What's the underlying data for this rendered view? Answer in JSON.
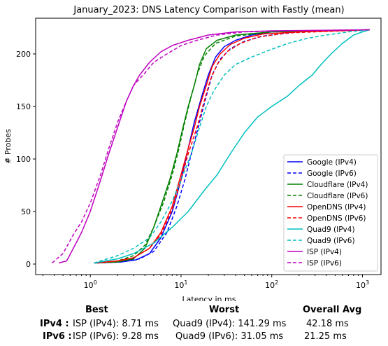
{
  "chart_data": {
    "type": "line",
    "title": "January_2023: DNS Latency Comparison with Fastly (mean)",
    "xlabel": "Latency in ms",
    "ylabel": "# Probes",
    "xscale": "log",
    "xlim": [
      0.25,
      1600
    ],
    "ylim": [
      -10,
      234
    ],
    "xticks": [
      {
        "value": 1,
        "label": "10^0"
      },
      {
        "value": 10,
        "label": "10^1"
      },
      {
        "value": 100,
        "label": "10^2"
      },
      {
        "value": 1000,
        "label": "10^3"
      }
    ],
    "yticks": [
      0,
      50,
      100,
      150,
      200
    ],
    "grid": false,
    "legend": "bottom-right",
    "series": [
      {
        "name": "Google (IPv4)",
        "color": "#0000ff",
        "dash": false,
        "points": [
          [
            1.1,
            1
          ],
          [
            2.2,
            2
          ],
          [
            3.2,
            4
          ],
          [
            4.5,
            10
          ],
          [
            6,
            25
          ],
          [
            8,
            50
          ],
          [
            10,
            80
          ],
          [
            12,
            110
          ],
          [
            14,
            135
          ],
          [
            17,
            160
          ],
          [
            20,
            180
          ],
          [
            24,
            197
          ],
          [
            30,
            207
          ],
          [
            40,
            213
          ],
          [
            60,
            218
          ],
          [
            100,
            221
          ],
          [
            300,
            222
          ],
          [
            1200,
            223
          ]
        ]
      },
      {
        "name": "Google (IPv6)",
        "color": "#0000ff",
        "dash": true,
        "points": [
          [
            1.2,
            1
          ],
          [
            2.2,
            2
          ],
          [
            3.5,
            5
          ],
          [
            5,
            12
          ],
          [
            7,
            30
          ],
          [
            9,
            55
          ],
          [
            11,
            80
          ],
          [
            13,
            105
          ],
          [
            16,
            135
          ],
          [
            19,
            160
          ],
          [
            22,
            180
          ],
          [
            27,
            195
          ],
          [
            35,
            205
          ],
          [
            50,
            212
          ],
          [
            80,
            217
          ],
          [
            200,
            221
          ],
          [
            1200,
            223
          ]
        ]
      },
      {
        "name": "Cloudflare (IPv4)",
        "color": "#008000",
        "dash": false,
        "points": [
          [
            1.1,
            1
          ],
          [
            2,
            2
          ],
          [
            3,
            5
          ],
          [
            4,
            15
          ],
          [
            5,
            35
          ],
          [
            6,
            55
          ],
          [
            7.5,
            80
          ],
          [
            9,
            105
          ],
          [
            10.5,
            130
          ],
          [
            12,
            150
          ],
          [
            14,
            170
          ],
          [
            16,
            190
          ],
          [
            19,
            205
          ],
          [
            25,
            213
          ],
          [
            40,
            218
          ],
          [
            100,
            221
          ],
          [
            300,
            222
          ],
          [
            1200,
            223
          ]
        ]
      },
      {
        "name": "Cloudflare (IPv6)",
        "color": "#008000",
        "dash": true,
        "points": [
          [
            1.2,
            1
          ],
          [
            2,
            3
          ],
          [
            3,
            8
          ],
          [
            4,
            18
          ],
          [
            5,
            35
          ],
          [
            6.5,
            60
          ],
          [
            8,
            85
          ],
          [
            9.5,
            110
          ],
          [
            11,
            135
          ],
          [
            13,
            160
          ],
          [
            15,
            180
          ],
          [
            18,
            198
          ],
          [
            24,
            210
          ],
          [
            40,
            217
          ],
          [
            100,
            221
          ],
          [
            1200,
            223
          ]
        ]
      },
      {
        "name": "OpenDNS (IPv4)",
        "color": "#ff0000",
        "dash": false,
        "points": [
          [
            1.1,
            1
          ],
          [
            2,
            3
          ],
          [
            3,
            6
          ],
          [
            4.5,
            15
          ],
          [
            6,
            30
          ],
          [
            8,
            55
          ],
          [
            10,
            85
          ],
          [
            12,
            110
          ],
          [
            14,
            130
          ],
          [
            16,
            150
          ],
          [
            19,
            170
          ],
          [
            22,
            188
          ],
          [
            27,
            200
          ],
          [
            35,
            209
          ],
          [
            50,
            215
          ],
          [
            80,
            219
          ],
          [
            200,
            221
          ],
          [
            1200,
            223
          ]
        ]
      },
      {
        "name": "OpenDNS (IPv6)",
        "color": "#ff0000",
        "dash": true,
        "points": [
          [
            1.2,
            1
          ],
          [
            2,
            3
          ],
          [
            3,
            6
          ],
          [
            4.5,
            15
          ],
          [
            6,
            28
          ],
          [
            8,
            52
          ],
          [
            10,
            80
          ],
          [
            12,
            105
          ],
          [
            15,
            130
          ],
          [
            18,
            155
          ],
          [
            21,
            175
          ],
          [
            25,
            190
          ],
          [
            32,
            202
          ],
          [
            45,
            210
          ],
          [
            70,
            216
          ],
          [
            150,
            220
          ],
          [
            1200,
            223
          ]
        ]
      },
      {
        "name": "Quad9 (IPv4)",
        "color": "#00bfbf",
        "dash": false,
        "points": [
          [
            1.1,
            1
          ],
          [
            2,
            5
          ],
          [
            3,
            10
          ],
          [
            5,
            20
          ],
          [
            8,
            35
          ],
          [
            12,
            50
          ],
          [
            18,
            70
          ],
          [
            25,
            85
          ],
          [
            35,
            105
          ],
          [
            50,
            125
          ],
          [
            70,
            140
          ],
          [
            100,
            150
          ],
          [
            150,
            160
          ],
          [
            200,
            170
          ],
          [
            280,
            180
          ],
          [
            350,
            190
          ],
          [
            450,
            200
          ],
          [
            600,
            210
          ],
          [
            800,
            218
          ],
          [
            1000,
            221
          ],
          [
            1200,
            223
          ]
        ]
      },
      {
        "name": "Quad9 (IPv6)",
        "color": "#00bfbf",
        "dash": true,
        "points": [
          [
            1.1,
            1
          ],
          [
            2,
            8
          ],
          [
            3,
            15
          ],
          [
            4.5,
            25
          ],
          [
            6,
            40
          ],
          [
            8,
            60
          ],
          [
            10,
            80
          ],
          [
            13,
            105
          ],
          [
            16,
            130
          ],
          [
            19,
            150
          ],
          [
            23,
            165
          ],
          [
            30,
            180
          ],
          [
            40,
            190
          ],
          [
            60,
            197
          ],
          [
            90,
            203
          ],
          [
            150,
            210
          ],
          [
            250,
            215
          ],
          [
            400,
            218
          ],
          [
            700,
            221
          ],
          [
            1200,
            223
          ]
        ]
      },
      {
        "name": "ISP (IPv4)",
        "color": "#bf00bf",
        "dash": false,
        "points": [
          [
            0.45,
            1
          ],
          [
            0.55,
            3
          ],
          [
            0.65,
            15
          ],
          [
            0.8,
            30
          ],
          [
            1,
            50
          ],
          [
            1.3,
            80
          ],
          [
            1.6,
            105
          ],
          [
            2,
            130
          ],
          [
            2.5,
            155
          ],
          [
            3,
            170
          ],
          [
            3.5,
            180
          ],
          [
            4.5,
            192
          ],
          [
            6,
            202
          ],
          [
            8,
            208
          ],
          [
            12,
            213
          ],
          [
            20,
            218
          ],
          [
            40,
            221
          ],
          [
            100,
            222
          ],
          [
            1200,
            223
          ]
        ]
      },
      {
        "name": "ISP (IPv6)",
        "color": "#bf00bf",
        "dash": true,
        "points": [
          [
            0.38,
            1
          ],
          [
            0.5,
            10
          ],
          [
            0.65,
            28
          ],
          [
            0.8,
            40
          ],
          [
            1,
            58
          ],
          [
            1.3,
            85
          ],
          [
            1.6,
            110
          ],
          [
            2,
            135
          ],
          [
            2.5,
            155
          ],
          [
            3,
            170
          ],
          [
            4,
            182
          ],
          [
            5,
            192
          ],
          [
            7,
            200
          ],
          [
            10,
            208
          ],
          [
            15,
            213
          ],
          [
            25,
            218
          ],
          [
            50,
            221
          ],
          [
            150,
            222
          ],
          [
            1200,
            223
          ]
        ]
      }
    ]
  },
  "stats": {
    "col_best": "Best",
    "col_worst": "Worst",
    "col_avg": "Overall Avg",
    "rows": [
      {
        "label": "IPv4 :",
        "best": "ISP (IPv4): 8.71 ms",
        "worst": "Quad9 (IPv4): 141.29 ms",
        "avg": "42.18 ms"
      },
      {
        "label": "IPv6 :",
        "best": "ISP (IPv6): 9.28 ms",
        "worst": "Quad9 (IPv6): 31.05 ms",
        "avg": "21.25 ms"
      }
    ]
  }
}
